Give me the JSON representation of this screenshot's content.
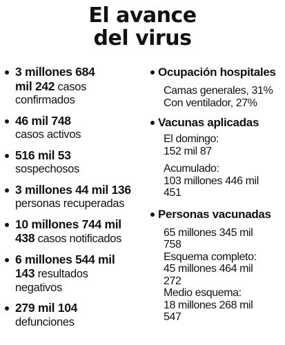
{
  "title": {
    "line1": "El avance",
    "line2": "del virus"
  },
  "left_items": [
    {
      "bold": "3 millones 684 mil 242",
      "normal": " casos confirmados"
    },
    {
      "bold": "46 mil 748",
      "normal": " casos activos"
    },
    {
      "bold": "516 mil 53",
      "normal": " sospechosos"
    },
    {
      "bold": "3 millones 44 mil 136",
      "normal": " personas recuperadas"
    },
    {
      "bold": "10 millones 744 mil 438",
      "normal": " casos notificados"
    },
    {
      "bold": "6 millones 544 mil 143",
      "normal": " resultados negativos"
    },
    {
      "bold": "279 mil 104",
      "normal": " defunciones"
    }
  ],
  "hospitales": {
    "title": "Ocupación hospitales",
    "camas": "Camas generales, 31%",
    "ventilador": "Con ventilador, 27%"
  },
  "vacunas": {
    "title": "Vacunas aplicadas",
    "domingo_label": "El domingo:",
    "domingo_value": "152 mil 87",
    "acumulado_label": "Acumulado:",
    "acumulado_value": "103 millones 446 mil 451"
  },
  "personas": {
    "title": "Personas vacunadas",
    "total": "65 millones 345 mil 758",
    "completo_label": "Esquema completo:",
    "completo_value": "45 millones 464 mil 272",
    "medio_label": "Medio esquema:",
    "medio_value": "18 millones 268 mil 547"
  }
}
